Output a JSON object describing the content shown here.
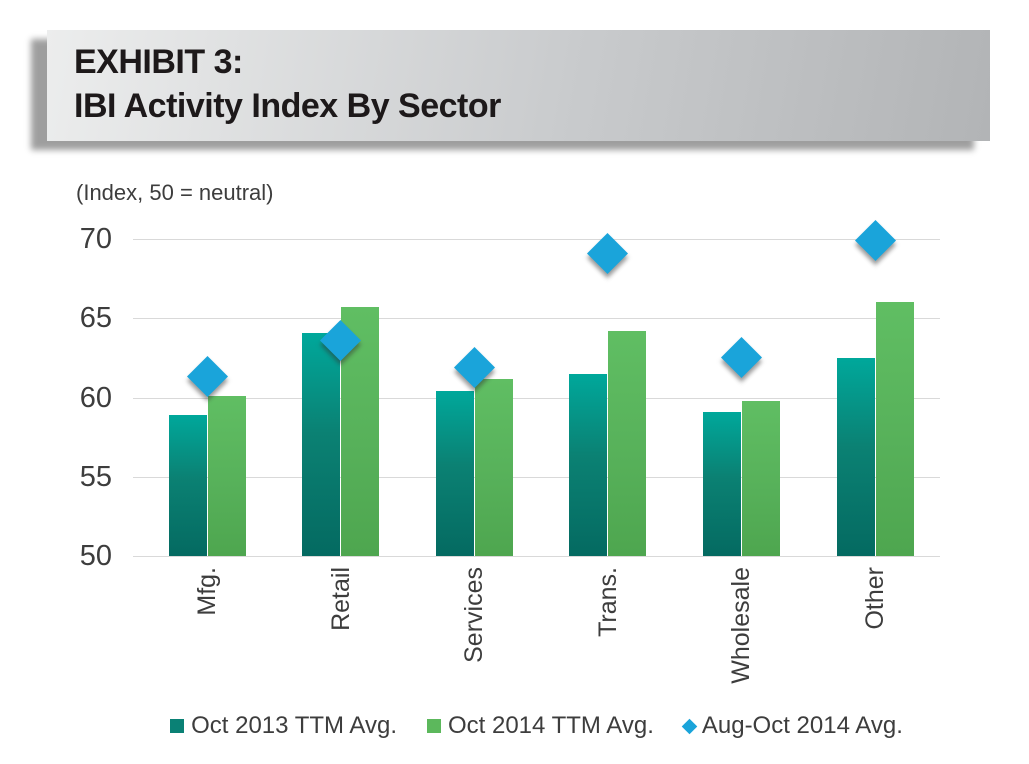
{
  "header": {
    "line1": "EXHIBIT 3:",
    "line2": "IBI Activity Index By Sector"
  },
  "subtitle": "(Index, 50 = neutral)",
  "chart_data": {
    "type": "bar",
    "title": "IBI Activity Index By Sector",
    "note": "(Index, 50 = neutral)",
    "categories": [
      "Mfg.",
      "Retail",
      "Services",
      "Trans.",
      "Wholesale",
      "Other"
    ],
    "series": [
      {
        "name": "Oct 2013 TTM Avg.",
        "type": "bar",
        "values": [
          58.9,
          64.1,
          60.4,
          61.5,
          59.1,
          62.5
        ]
      },
      {
        "name": "Oct 2014 TTM Avg.",
        "type": "bar",
        "values": [
          60.1,
          65.7,
          61.2,
          64.2,
          59.8,
          66.0
        ]
      },
      {
        "name": "Aug-Oct 2014 Avg.",
        "type": "scatter",
        "marker": "diamond",
        "values": [
          61.3,
          63.6,
          61.9,
          69.1,
          62.5,
          69.9
        ]
      }
    ],
    "xlabel": "",
    "ylabel": "",
    "ylim": [
      50,
      70
    ],
    "yticks": [
      70,
      65,
      60,
      55,
      50
    ],
    "grid": true,
    "legend_position": "bottom"
  },
  "colors": {
    "teal_top": "#00a89b",
    "teal_bottom": "#046a61",
    "green_top": "#60be63",
    "green_bottom": "#4ea64f",
    "diamond": "#1aa4da",
    "legend_teal": "#0a8175",
    "legend_green": "#5cb85c",
    "gridline": "#d9d9d9",
    "axis_text": "#3d3d3d",
    "title_text": "#1d191a"
  }
}
